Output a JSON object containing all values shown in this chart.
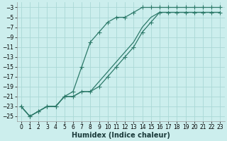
{
  "xlabel": "Humidex (Indice chaleur)",
  "bg_color": "#cceeed",
  "grid_color": "#aad8d6",
  "line_color": "#2d7a6a",
  "xlim": [
    -0.5,
    23.5
  ],
  "ylim": [
    -26,
    -2
  ],
  "xticks": [
    0,
    1,
    2,
    3,
    4,
    5,
    6,
    7,
    8,
    9,
    10,
    11,
    12,
    13,
    14,
    15,
    16,
    17,
    18,
    19,
    20,
    21,
    22,
    23
  ],
  "yticks": [
    -3,
    -5,
    -7,
    -9,
    -11,
    -13,
    -15,
    -17,
    -19,
    -21,
    -23,
    -25
  ],
  "line1_x": [
    0,
    1,
    2,
    3,
    4,
    5,
    6,
    7,
    8,
    9,
    10,
    11,
    12,
    13,
    14,
    15,
    16,
    17,
    18,
    19,
    20,
    21,
    22,
    23
  ],
  "line1_y": [
    -23,
    -25,
    -24,
    -23,
    -23,
    -21,
    -20,
    -15,
    -10,
    -8,
    -6,
    -5,
    -5,
    -4,
    -3,
    -3,
    -3,
    -3,
    -3,
    -3,
    -3,
    -3,
    -3,
    -3
  ],
  "line2_x": [
    0,
    1,
    2,
    3,
    4,
    5,
    6,
    7,
    8,
    9,
    10,
    11,
    12,
    13,
    14,
    15,
    16,
    17,
    18,
    19,
    20,
    21,
    22,
    23
  ],
  "line2_y": [
    -23,
    -25,
    -24,
    -23,
    -23,
    -21,
    -21,
    -20,
    -20,
    -19,
    -17,
    -15,
    -13,
    -11,
    -8,
    -6,
    -4,
    -4,
    -4,
    -4,
    -4,
    -4,
    -4,
    -4
  ],
  "line3_x": [
    0,
    1,
    2,
    3,
    4,
    5,
    6,
    7,
    8,
    9,
    10,
    11,
    12,
    13,
    14,
    15,
    16,
    17,
    18,
    19,
    20,
    21,
    22,
    23
  ],
  "line3_y": [
    -23,
    -25,
    -24,
    -23,
    -23,
    -21,
    -21,
    -20,
    -20,
    -18,
    -16,
    -14,
    -12,
    -10,
    -7,
    -5,
    -4,
    -4,
    -4,
    -4,
    -4,
    -4,
    -4,
    -4
  ],
  "marker_size": 2.5,
  "line_width": 0.9,
  "font_size_tick": 5.5,
  "font_size_label": 7
}
